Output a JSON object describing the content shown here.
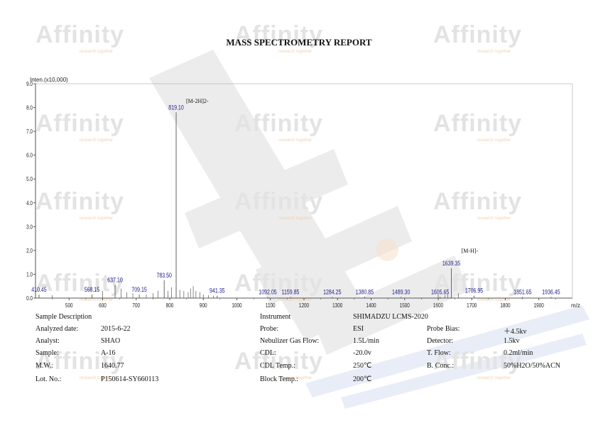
{
  "report_title": "MASS SPECTROMETRY REPORT",
  "watermark": {
    "brand": "Affinity",
    "tagline": "research together"
  },
  "chart_data": {
    "type": "bar",
    "y_axis_title": "Inten.(x10,000)",
    "x_unit": "m/z",
    "xlim": [
      400,
      2000
    ],
    "ylim": [
      0,
      9
    ],
    "grid": false,
    "x_ticks": [
      500,
      600,
      700,
      800,
      900,
      1000,
      1100,
      1200,
      1300,
      1400,
      1500,
      1600,
      1700,
      1800,
      1900
    ],
    "y_ticks": [
      0,
      1,
      2,
      3,
      4,
      5,
      6,
      7,
      8,
      9
    ],
    "y_tick_labels": [
      "0.0",
      "1.0",
      "2.0",
      "3.0",
      "4.0",
      "5.0",
      "6.0",
      "7.0",
      "8.0",
      "9.0"
    ],
    "peaks": [
      {
        "mz": 410.45,
        "intensity": 0.15,
        "label": "410.45"
      },
      {
        "mz": 568.15,
        "intensity": 0.15,
        "label": "568.15"
      },
      {
        "mz": 637.1,
        "intensity": 0.55,
        "label": "637.10"
      },
      {
        "mz": 709.15,
        "intensity": 0.15,
        "label": "709.15"
      },
      {
        "mz": 783.5,
        "intensity": 0.75,
        "label": "783.50"
      },
      {
        "mz": 819.1,
        "intensity": 7.8,
        "label": "819.10"
      },
      {
        "mz": 941.35,
        "intensity": 0.1,
        "label": "941.35"
      },
      {
        "mz": 1092.05,
        "intensity": 0.05,
        "label": "1092.05"
      },
      {
        "mz": 1159.85,
        "intensity": 0.05,
        "label": "1159.85"
      },
      {
        "mz": 1284.25,
        "intensity": 0.05,
        "label": "1284.25"
      },
      {
        "mz": 1380.85,
        "intensity": 0.05,
        "label": "1380.85"
      },
      {
        "mz": 1489.3,
        "intensity": 0.05,
        "label": "1489.30"
      },
      {
        "mz": 1605.65,
        "intensity": 0.05,
        "label": "1605.65"
      },
      {
        "mz": 1639.35,
        "intensity": 1.25,
        "label": "1639.35"
      },
      {
        "mz": 1706.95,
        "intensity": 0.1,
        "label": "1706.95"
      },
      {
        "mz": 1851.65,
        "intensity": 0.05,
        "label": "1851.65"
      },
      {
        "mz": 1936.45,
        "intensity": 0.05,
        "label": "1936.45"
      }
    ],
    "minor_peaks": [
      {
        "mz": 450,
        "intensity": 0.12
      },
      {
        "mz": 600,
        "intensity": 0.3
      },
      {
        "mz": 655,
        "intensity": 0.4
      },
      {
        "mz": 672,
        "intensity": 0.25
      },
      {
        "mz": 690,
        "intensity": 0.2
      },
      {
        "mz": 730,
        "intensity": 0.15
      },
      {
        "mz": 750,
        "intensity": 0.2
      },
      {
        "mz": 765,
        "intensity": 0.3
      },
      {
        "mz": 795,
        "intensity": 0.3
      },
      {
        "mz": 805,
        "intensity": 0.45
      },
      {
        "mz": 830,
        "intensity": 0.35
      },
      {
        "mz": 842,
        "intensity": 0.3
      },
      {
        "mz": 855,
        "intensity": 0.25
      },
      {
        "mz": 862,
        "intensity": 0.4
      },
      {
        "mz": 870,
        "intensity": 0.5
      },
      {
        "mz": 878,
        "intensity": 0.3
      },
      {
        "mz": 890,
        "intensity": 0.25
      },
      {
        "mz": 900,
        "intensity": 0.15
      },
      {
        "mz": 915,
        "intensity": 0.12
      },
      {
        "mz": 930,
        "intensity": 0.1
      },
      {
        "mz": 1600,
        "intensity": 0.15
      },
      {
        "mz": 1620,
        "intensity": 0.12
      },
      {
        "mz": 1628,
        "intensity": 0.15
      },
      {
        "mz": 1660,
        "intensity": 0.2
      }
    ],
    "annotations": [
      {
        "text": "[M-2H]2-",
        "mz": 819.1,
        "intensity": 8.2
      },
      {
        "text": "[M-H]-",
        "mz": 1639.35,
        "intensity": 1.9
      }
    ]
  },
  "sample_description": {
    "heading": "Sample Description",
    "rows": [
      {
        "label": "Analyzed date:",
        "value": "2015-6-22"
      },
      {
        "label": "Analyst:",
        "value": "SHAO"
      },
      {
        "label": "Sample:",
        "value": "A-16"
      },
      {
        "label": "M.W.:",
        "value": "1640.77"
      },
      {
        "label": "Lot. No.:",
        "value": "P150614-SY660113"
      }
    ]
  },
  "instrument": {
    "heading": "Instrument",
    "model": "SHIMADZU LCMS-2020",
    "left_rows": [
      {
        "label": "Probe:",
        "value": "ESI"
      },
      {
        "label": "Nebulizer Gas Flow:",
        "value": "1.5L/min"
      },
      {
        "label": "CDL:",
        "value": "-20.0v"
      },
      {
        "label": "CDL Temp.:",
        "value": "250℃"
      },
      {
        "label": "Block Temp.:",
        "value": "200℃"
      }
    ],
    "right_rows": [
      {
        "label": "Probe Bias:",
        "value": "＋4.5kv"
      },
      {
        "label": "Detector:",
        "value": "1.5kv"
      },
      {
        "label": "T. Flow:",
        "value": "0.2ml/min"
      },
      {
        "label": "B. Conc.:",
        "value": "50%H2O/50%ACN"
      }
    ]
  },
  "colors": {
    "axis": "#333333",
    "peak": "#555555",
    "label": "#1b1b8a",
    "watermark": "#e3e3e3"
  }
}
